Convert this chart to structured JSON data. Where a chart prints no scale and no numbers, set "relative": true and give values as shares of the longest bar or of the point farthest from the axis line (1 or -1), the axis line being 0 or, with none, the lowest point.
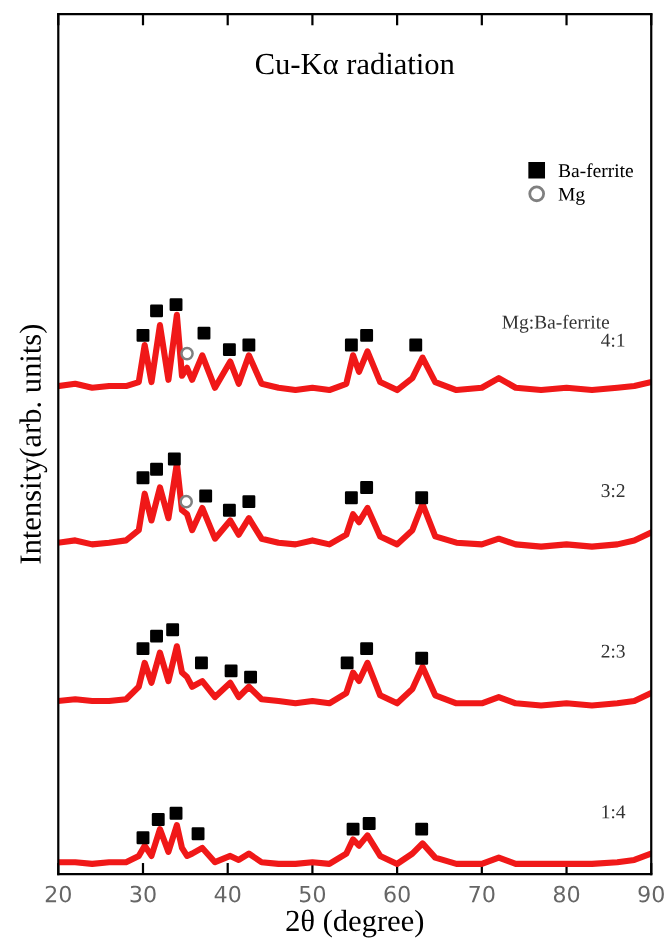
{
  "chart_data": {
    "type": "line",
    "title": "Cu-Kα radiation",
    "xlabel": "2θ (degree)",
    "ylabel": "Intensity(arb. units)",
    "relative": true,
    "annotations": [
      "Mg:Ba-ferrite"
    ],
    "xlim": [
      20,
      90
    ],
    "xticks": [
      20,
      30,
      40,
      50,
      60,
      70,
      80,
      90
    ],
    "grid": false,
    "legend": "top right",
    "tick_labels": "x",
    "x": [
      20,
      22,
      24,
      26,
      28,
      29.5,
      30.2,
      31,
      32,
      33,
      34,
      34.6,
      35.2,
      35.8,
      37,
      38.5,
      40.3,
      41.3,
      42.5,
      44,
      46,
      48,
      50,
      52,
      54,
      54.8,
      55.5,
      56.5,
      58,
      60,
      61.8,
      63,
      64.5,
      67,
      70,
      72,
      74,
      77,
      80,
      83,
      86,
      88,
      90
    ],
    "series": [
      {
        "name": "4:1",
        "color": "#f01818",
        "line_style": "solid",
        "marker": "none",
        "values": [
          0.857,
          0.861,
          0.854,
          0.857,
          0.857,
          0.864,
          0.929,
          0.864,
          0.964,
          0.868,
          0.982,
          0.875,
          0.889,
          0.868,
          0.911,
          0.854,
          0.9,
          0.861,
          0.911,
          0.861,
          0.854,
          0.85,
          0.854,
          0.85,
          0.861,
          0.911,
          0.882,
          0.918,
          0.864,
          0.85,
          0.871,
          0.907,
          0.864,
          0.85,
          0.854,
          0.871,
          0.854,
          0.85,
          0.854,
          0.85,
          0.854,
          0.857,
          0.864
        ]
      },
      {
        "name": "3:2",
        "color": "#f01818",
        "line_style": "solid",
        "marker": "none",
        "values": [
          0.582,
          0.586,
          0.579,
          0.582,
          0.586,
          0.604,
          0.668,
          0.621,
          0.679,
          0.625,
          0.721,
          0.639,
          0.632,
          0.604,
          0.643,
          0.589,
          0.621,
          0.596,
          0.625,
          0.589,
          0.582,
          0.579,
          0.586,
          0.579,
          0.596,
          0.632,
          0.618,
          0.643,
          0.593,
          0.579,
          0.604,
          0.65,
          0.593,
          0.582,
          0.579,
          0.589,
          0.579,
          0.575,
          0.579,
          0.575,
          0.579,
          0.586,
          0.6
        ]
      },
      {
        "name": "2:3",
        "color": "#f01818",
        "line_style": "solid",
        "marker": "none",
        "values": [
          0.304,
          0.307,
          0.304,
          0.304,
          0.307,
          0.329,
          0.371,
          0.336,
          0.389,
          0.339,
          0.4,
          0.354,
          0.346,
          0.329,
          0.339,
          0.311,
          0.336,
          0.311,
          0.329,
          0.307,
          0.304,
          0.3,
          0.304,
          0.3,
          0.318,
          0.354,
          0.339,
          0.371,
          0.314,
          0.3,
          0.325,
          0.364,
          0.314,
          0.3,
          0.3,
          0.311,
          0.3,
          0.296,
          0.3,
          0.296,
          0.3,
          0.304,
          0.318
        ]
      },
      {
        "name": "1:4",
        "color": "#f01818",
        "line_style": "solid",
        "marker": "none",
        "values": [
          0.021,
          0.021,
          0.018,
          0.021,
          0.021,
          0.032,
          0.05,
          0.032,
          0.079,
          0.039,
          0.086,
          0.046,
          0.032,
          0.036,
          0.046,
          0.021,
          0.032,
          0.025,
          0.036,
          0.021,
          0.018,
          0.018,
          0.021,
          0.018,
          0.036,
          0.061,
          0.05,
          0.068,
          0.032,
          0.018,
          0.036,
          0.054,
          0.029,
          0.018,
          0.018,
          0.029,
          0.018,
          0.018,
          0.018,
          0.018,
          0.021,
          0.025,
          0.036
        ]
      },
      {
        "name": "Ba-ferrite",
        "type": "scatter",
        "color": "#000000",
        "marker": "square",
        "x": [
          30.0,
          31.6,
          33.9,
          37.2,
          40.2,
          42.5,
          54.6,
          56.4,
          62.2,
          30.0,
          31.6,
          33.7,
          37.4,
          40.2,
          42.5,
          54.6,
          56.4,
          62.9,
          30.0,
          31.6,
          33.5,
          36.9,
          40.4,
          42.7,
          54.1,
          56.4,
          62.9,
          30.0,
          31.8,
          33.9,
          36.5,
          54.8,
          56.7,
          62.9
        ],
        "values": [
          0.946,
          0.989,
          1.0,
          0.95,
          0.921,
          0.929,
          0.929,
          0.946,
          0.929,
          0.696,
          0.711,
          0.729,
          0.664,
          0.639,
          0.654,
          0.661,
          0.679,
          0.661,
          0.396,
          0.418,
          0.429,
          0.371,
          0.357,
          0.346,
          0.371,
          0.396,
          0.379,
          0.064,
          0.096,
          0.107,
          0.071,
          0.079,
          0.089,
          0.079
        ]
      },
      {
        "name": "Mg",
        "type": "scatter",
        "color": "#808080",
        "marker": "circle",
        "x": [
          35.2,
          35.1
        ],
        "values": [
          0.914,
          0.654
        ]
      }
    ]
  }
}
